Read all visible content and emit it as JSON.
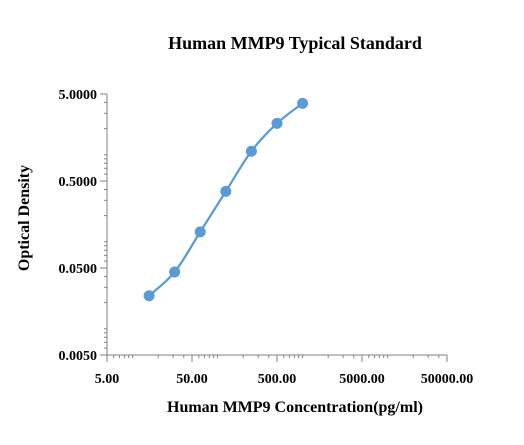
{
  "chart_data": {
    "type": "scatter",
    "title": "Human MMP9  Typical Standard",
    "xlabel": "Human MMP9 Concentration(pg/ml)",
    "ylabel": "Optical Density",
    "x_scale": "log",
    "y_scale": "log",
    "xlim": [
      5,
      50000
    ],
    "ylim": [
      0.005,
      5
    ],
    "x_ticks": [
      5,
      50,
      500,
      5000,
      50000
    ],
    "x_tick_labels": [
      "5.00",
      "50.00",
      "500.00",
      "5000.00",
      "50000.00"
    ],
    "y_ticks": [
      0.005,
      0.05,
      0.5,
      5
    ],
    "y_tick_labels": [
      "0.0050",
      "0.0500",
      "0.5000",
      "5.0000"
    ],
    "grid": false,
    "legend": "none",
    "series": [
      {
        "x": [
          15.63,
          31.25,
          62.5,
          125,
          250,
          500,
          1000
        ],
        "y": [
          0.024,
          0.045,
          0.13,
          0.38,
          1.1,
          2.3,
          3.9
        ],
        "color": "#5B9BD5",
        "marker": "circle",
        "smooth_line": true
      }
    ]
  }
}
